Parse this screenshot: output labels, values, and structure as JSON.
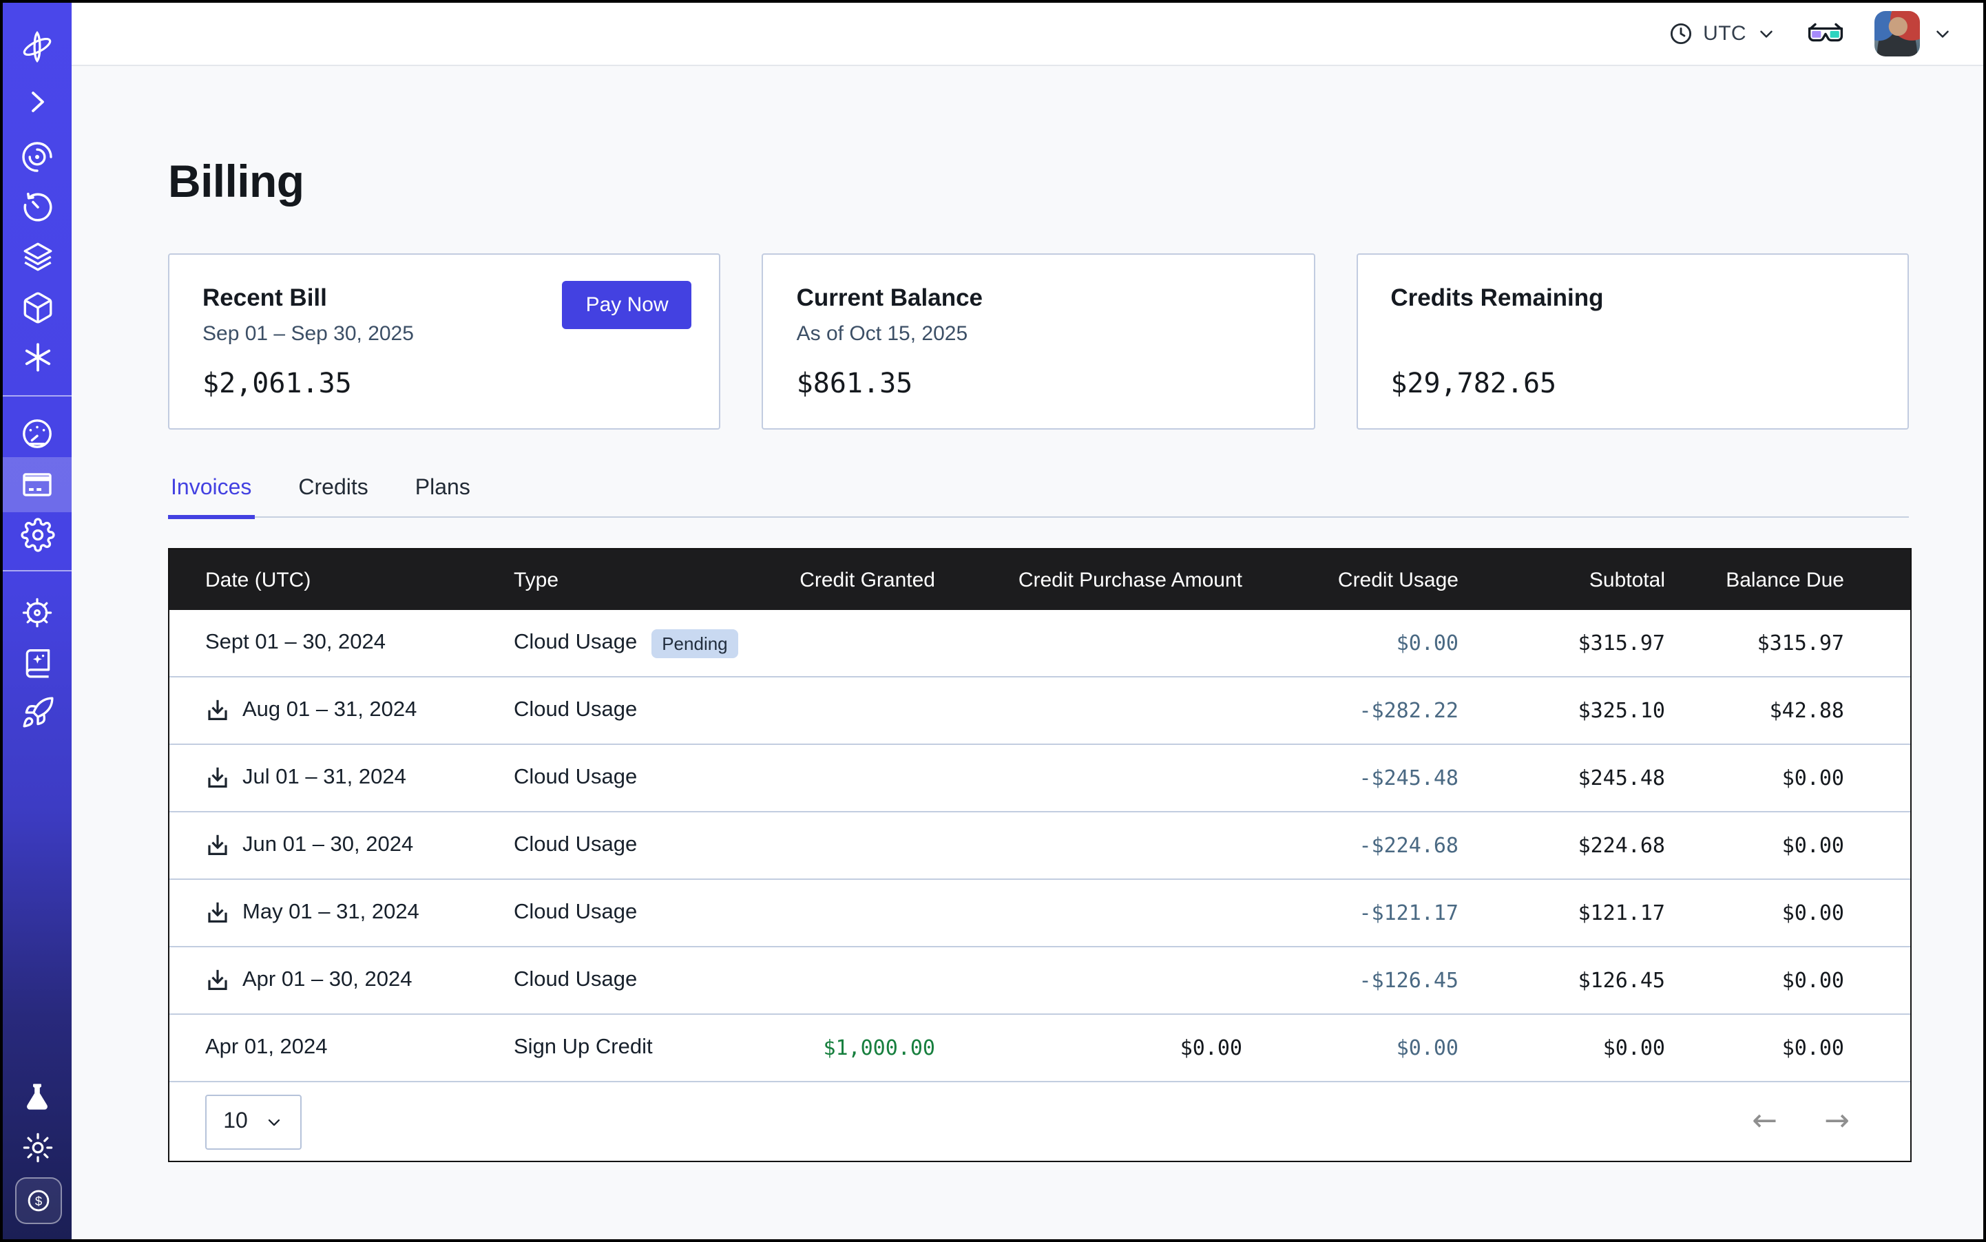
{
  "topbar": {
    "timezone": "UTC",
    "icons": [
      "clock-icon",
      "chevron-down-icon",
      "3d-glasses-icon",
      "avatar",
      "chevron-down-icon"
    ]
  },
  "sidebar": {
    "icons_top": [
      "brand-orbit-icon",
      "chevron-right-icon",
      "spiral-observe-icon",
      "history-timer-icon",
      "layers-icon",
      "cube-icon",
      "asterisk-icon"
    ],
    "icons_middle": [
      "gauge-usage-icon",
      "billing-card-icon",
      "settings-gear-icon"
    ],
    "icons_lower": [
      "helm-wheel-icon",
      "book-sparkle-icon",
      "rocket-icon"
    ],
    "icons_bottom": [
      "flask-icon",
      "sun-icon",
      "dollar-badge-icon"
    ],
    "active_item": "billing-card-icon"
  },
  "page": {
    "title": "Billing"
  },
  "cards": [
    {
      "title": "Recent Bill",
      "subtitle": "Sep 01 – Sep 30, 2025",
      "amount": "$2,061.35",
      "action": "Pay Now"
    },
    {
      "title": "Current Balance",
      "subtitle": "As of Oct 15, 2025",
      "amount": "$861.35"
    },
    {
      "title": "Credits Remaining",
      "subtitle": "",
      "amount": "$29,782.65"
    }
  ],
  "tabs": [
    {
      "label": "Invoices",
      "active": true
    },
    {
      "label": "Credits",
      "active": false
    },
    {
      "label": "Plans",
      "active": false
    }
  ],
  "table": {
    "columns": [
      "Date (UTC)",
      "Type",
      "Credit Granted",
      "Credit Purchase Amount",
      "Credit Usage",
      "Subtotal",
      "Balance Due"
    ],
    "rows": [
      {
        "date": "Sept 01 – 30, 2024",
        "download": false,
        "type": "Cloud Usage",
        "badge": "Pending",
        "credit_granted": "",
        "credit_purchase": "",
        "credit_usage": "$0.00",
        "subtotal": "$315.97",
        "balance_due": "$315.97"
      },
      {
        "date": "Aug 01 – 31, 2024",
        "download": true,
        "type": "Cloud Usage",
        "badge": "",
        "credit_granted": "",
        "credit_purchase": "",
        "credit_usage": "-$282.22",
        "subtotal": "$325.10",
        "balance_due": "$42.88"
      },
      {
        "date": "Jul 01 – 31, 2024",
        "download": true,
        "type": "Cloud Usage",
        "badge": "",
        "credit_granted": "",
        "credit_purchase": "",
        "credit_usage": "-$245.48",
        "subtotal": "$245.48",
        "balance_due": "$0.00"
      },
      {
        "date": "Jun 01 – 30, 2024",
        "download": true,
        "type": "Cloud Usage",
        "badge": "",
        "credit_granted": "",
        "credit_purchase": "",
        "credit_usage": "-$224.68",
        "subtotal": "$224.68",
        "balance_due": "$0.00"
      },
      {
        "date": "May 01 – 31, 2024",
        "download": true,
        "type": "Cloud Usage",
        "badge": "",
        "credit_granted": "",
        "credit_purchase": "",
        "credit_usage": "-$121.17",
        "subtotal": "$121.17",
        "balance_due": "$0.00"
      },
      {
        "date": "Apr 01 – 30, 2024",
        "download": true,
        "type": "Cloud Usage",
        "badge": "",
        "credit_granted": "",
        "credit_purchase": "",
        "credit_usage": "-$126.45",
        "subtotal": "$126.45",
        "balance_due": "$0.00"
      },
      {
        "date": "Apr 01, 2024",
        "download": false,
        "type": "Sign Up Credit",
        "badge": "",
        "credit_granted": "$1,000.00",
        "credit_purchase": "$0.00",
        "credit_usage": "$0.00",
        "subtotal": "$0.00",
        "balance_due": "$0.00"
      }
    ]
  },
  "pagination": {
    "page_size": "10",
    "prev": "←",
    "next": "→"
  },
  "colors": {
    "accent_indigo": "#4341e1",
    "sidebar_top": "#4a47ea",
    "sidebar_bottom": "#1b1f55",
    "table_header_bg": "#1c1c1e",
    "credit_usage_text": "#4a6983",
    "credit_granted_green": "#177f3e",
    "pending_badge_bg": "#c9d9f1",
    "card_border": "#c2cce0",
    "page_bg": "#f8f9fb",
    "glasses_left_lens": "#a78bfa",
    "glasses_right_lens": "#2dd4bf"
  }
}
